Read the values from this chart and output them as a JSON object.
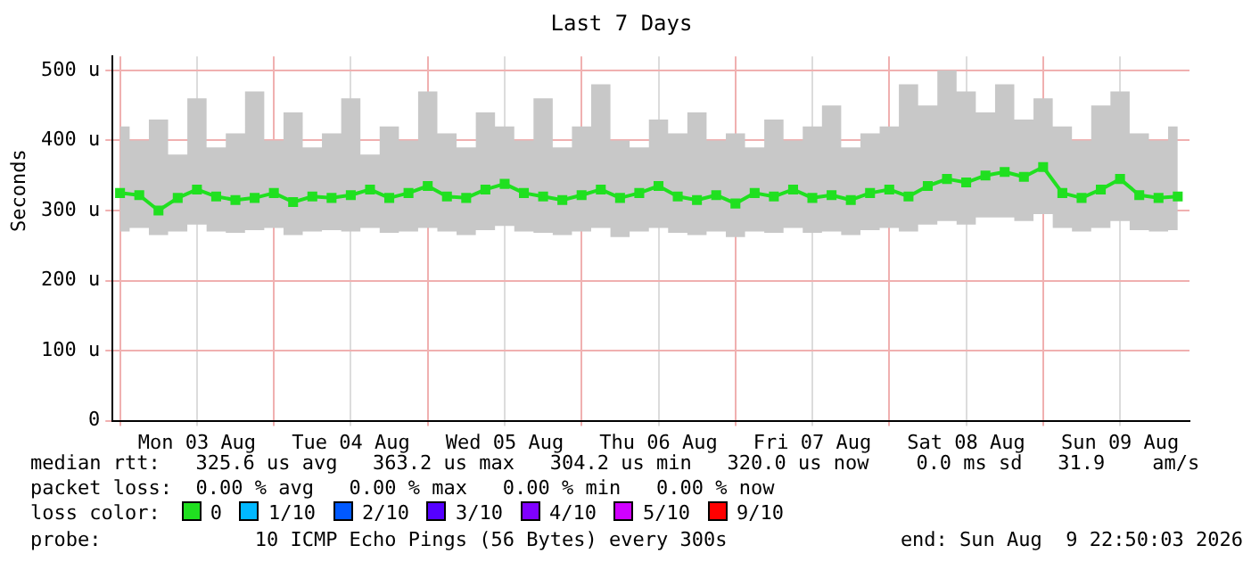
{
  "chart_data": {
    "type": "line",
    "title": "Last 7 Days",
    "ylabel": "Seconds",
    "x": [
      "2026-08-03T00:00",
      "2026-08-03T03:00",
      "2026-08-03T06:00",
      "2026-08-03T09:00",
      "2026-08-03T12:00",
      "2026-08-03T15:00",
      "2026-08-03T18:00",
      "2026-08-03T21:00",
      "2026-08-04T00:00",
      "2026-08-04T03:00",
      "2026-08-04T06:00",
      "2026-08-04T09:00",
      "2026-08-04T12:00",
      "2026-08-04T15:00",
      "2026-08-04T18:00",
      "2026-08-04T21:00",
      "2026-08-05T00:00",
      "2026-08-05T03:00",
      "2026-08-05T06:00",
      "2026-08-05T09:00",
      "2026-08-05T12:00",
      "2026-08-05T15:00",
      "2026-08-05T18:00",
      "2026-08-05T21:00",
      "2026-08-06T00:00",
      "2026-08-06T03:00",
      "2026-08-06T06:00",
      "2026-08-06T09:00",
      "2026-08-06T12:00",
      "2026-08-06T15:00",
      "2026-08-06T18:00",
      "2026-08-06T21:00",
      "2026-08-07T00:00",
      "2026-08-07T03:00",
      "2026-08-07T06:00",
      "2026-08-07T09:00",
      "2026-08-07T12:00",
      "2026-08-07T15:00",
      "2026-08-07T18:00",
      "2026-08-07T21:00",
      "2026-08-08T00:00",
      "2026-08-08T03:00",
      "2026-08-08T06:00",
      "2026-08-08T09:00",
      "2026-08-08T12:00",
      "2026-08-08T15:00",
      "2026-08-08T18:00",
      "2026-08-08T21:00",
      "2026-08-09T00:00",
      "2026-08-09T03:00",
      "2026-08-09T06:00",
      "2026-08-09T09:00",
      "2026-08-09T12:00",
      "2026-08-09T15:00",
      "2026-08-09T18:00",
      "2026-08-09T21:00"
    ],
    "series": [
      {
        "color": "#20e020",
        "values": [
          325,
          322,
          300,
          318,
          330,
          320,
          315,
          318,
          325,
          312,
          320,
          318,
          322,
          330,
          318,
          325,
          335,
          320,
          318,
          330,
          338,
          325,
          320,
          315,
          322,
          330,
          318,
          325,
          335,
          320,
          315,
          322,
          310,
          325,
          320,
          330,
          318,
          322,
          315,
          325,
          330,
          320,
          335,
          345,
          340,
          350,
          355,
          348,
          362,
          325,
          318,
          330,
          345,
          322,
          318,
          320
        ],
        "lower": [
          270,
          275,
          265,
          270,
          280,
          270,
          268,
          272,
          275,
          265,
          270,
          272,
          270,
          275,
          268,
          270,
          275,
          270,
          265,
          272,
          278,
          270,
          268,
          265,
          270,
          275,
          262,
          270,
          275,
          268,
          265,
          270,
          262,
          270,
          268,
          275,
          268,
          270,
          265,
          272,
          275,
          270,
          280,
          285,
          280,
          290,
          290,
          285,
          295,
          275,
          270,
          275,
          285,
          272,
          270,
          272
        ],
        "upper": [
          420,
          400,
          430,
          380,
          460,
          390,
          410,
          470,
          400,
          440,
          390,
          410,
          460,
          380,
          420,
          400,
          470,
          410,
          390,
          440,
          420,
          400,
          460,
          390,
          420,
          480,
          400,
          390,
          430,
          410,
          440,
          400,
          410,
          390,
          430,
          400,
          420,
          450,
          390,
          410,
          420,
          480,
          450,
          500,
          470,
          440,
          480,
          430,
          460,
          420,
          400,
          450,
          470,
          410,
          400,
          420
        ]
      }
    ],
    "xlim": [
      "2026-08-02T22:50",
      "2026-08-09T22:50"
    ],
    "xticks": [
      {
        "value": "2026-08-03T00:00",
        "label": null
      },
      {
        "value": "2026-08-03T12:00",
        "label": "Mon 03 Aug"
      },
      {
        "value": "2026-08-04T00:00",
        "label": null
      },
      {
        "value": "2026-08-04T12:00",
        "label": "Tue 04 Aug"
      },
      {
        "value": "2026-08-05T00:00",
        "label": null
      },
      {
        "value": "2026-08-05T12:00",
        "label": "Wed 05 Aug"
      },
      {
        "value": "2026-08-06T00:00",
        "label": null
      },
      {
        "value": "2026-08-06T12:00",
        "label": "Thu 06 Aug"
      },
      {
        "value": "2026-08-07T00:00",
        "label": null
      },
      {
        "value": "2026-08-07T12:00",
        "label": "Fri 07 Aug"
      },
      {
        "value": "2026-08-08T00:00",
        "label": null
      },
      {
        "value": "2026-08-08T12:00",
        "label": "Sat 08 Aug"
      },
      {
        "value": "2026-08-09T00:00",
        "label": null
      },
      {
        "value": "2026-08-09T12:00",
        "label": "Sun 09 Aug"
      }
    ],
    "ylim": [
      0,
      520
    ],
    "yticks": [
      0,
      {
        "value": 100,
        "label": "100 u"
      },
      {
        "value": 200,
        "label": "200 u"
      },
      {
        "value": 300,
        "label": "300 u"
      },
      {
        "value": 400,
        "label": "400 u"
      },
      {
        "value": 500,
        "label": "500 u"
      }
    ],
    "grid": true,
    "legend": false,
    "marker": "square",
    "line_style": "solid",
    "annotations": [
      "median rtt:   325.6 us avg   363.2 us max   304.2 us min   320.0 us now    0.0 ms sd   31.9    am/s",
      "packet loss:  0.00 % avg   0.00 % max   0.00 % min   0.00 % now",
      "loss color:",
      "0",
      "1/10",
      "2/10",
      "3/10",
      "4/10",
      "5/10",
      "9/10",
      "probe:             10 ICMP Echo Pings (56 Bytes) every 300s",
      "end: Sun Aug  9 22:50:03 2026"
    ]
  }
}
